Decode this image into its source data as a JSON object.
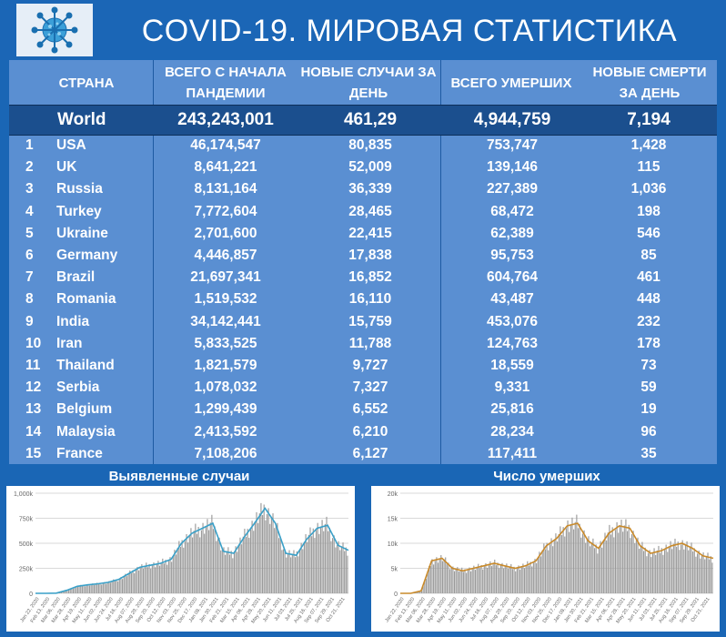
{
  "title": "COVID-19. МИРОВАЯ СТАТИСТИКА",
  "logo_icon": "coronavirus-icon",
  "columns": {
    "country": "СТРАНА",
    "total": "ВСЕГО С НАЧАЛА ПАНДЕМИИ",
    "new": "НОВЫЕ СЛУЧАИ ЗА ДЕНЬ",
    "deaths": "ВСЕГО УМЕРШИХ",
    "new_deaths": "НОВЫЕ СМЕРТИ ЗА ДЕНЬ"
  },
  "world": {
    "name": "World",
    "total": "243,243,001",
    "new": "461,29",
    "deaths": "4,944,759",
    "new_deaths": "7,194"
  },
  "rows": [
    {
      "rank": "1",
      "country": "USA",
      "total": "46,174,547",
      "new": "80,835",
      "deaths": "753,747",
      "new_deaths": "1,428"
    },
    {
      "rank": "2",
      "country": "UK",
      "total": "8,641,221",
      "new": "52,009",
      "deaths": "139,146",
      "new_deaths": "115"
    },
    {
      "rank": "3",
      "country": "Russia",
      "total": "8,131,164",
      "new": "36,339",
      "deaths": "227,389",
      "new_deaths": "1,036"
    },
    {
      "rank": "4",
      "country": "Turkey",
      "total": "7,772,604",
      "new": "28,465",
      "deaths": "68,472",
      "new_deaths": "198"
    },
    {
      "rank": "5",
      "country": "Ukraine",
      "total": "2,701,600",
      "new": "22,415",
      "deaths": "62,389",
      "new_deaths": "546"
    },
    {
      "rank": "6",
      "country": "Germany",
      "total": "4,446,857",
      "new": "17,838",
      "deaths": "95,753",
      "new_deaths": "85"
    },
    {
      "rank": "7",
      "country": "Brazil",
      "total": "21,697,341",
      "new": "16,852",
      "deaths": "604,764",
      "new_deaths": "461"
    },
    {
      "rank": "8",
      "country": "Romania",
      "total": "1,519,532",
      "new": "16,110",
      "deaths": "43,487",
      "new_deaths": "448"
    },
    {
      "rank": "9",
      "country": "India",
      "total": "34,142,441",
      "new": "15,759",
      "deaths": "453,076",
      "new_deaths": "232"
    },
    {
      "rank": "10",
      "country": "Iran",
      "total": "5,833,525",
      "new": "11,788",
      "deaths": "124,763",
      "new_deaths": "178"
    },
    {
      "rank": "11",
      "country": "Thailand",
      "total": "1,821,579",
      "new": "9,727",
      "deaths": "18,559",
      "new_deaths": "73"
    },
    {
      "rank": "12",
      "country": "Serbia",
      "total": "1,078,032",
      "new": "7,327",
      "deaths": "9,331",
      "new_deaths": "59"
    },
    {
      "rank": "13",
      "country": "Belgium",
      "total": "1,299,439",
      "new": "6,552",
      "deaths": "25,816",
      "new_deaths": "19"
    },
    {
      "rank": "14",
      "country": "Malaysia",
      "total": "2,413,592",
      "new": "6,210",
      "deaths": "28,234",
      "new_deaths": "96"
    },
    {
      "rank": "15",
      "country": "France",
      "total": "7,108,206",
      "new": "6,127",
      "deaths": "117,411",
      "new_deaths": "35"
    }
  ],
  "colors": {
    "header_bg": "#1b66b6",
    "table_bg": "#5a8fd2",
    "world_bg": "#1b4f8e",
    "bar": "#9a9a9a",
    "cases_line": "#3aa0c8",
    "deaths_line": "#c98a2a"
  },
  "chart_data": [
    {
      "type": "bar",
      "title": "Выявленные случаи",
      "ylim": [
        0,
        1000000
      ],
      "y_ticks": [
        "0",
        "250k",
        "500k",
        "750k",
        "1,000k"
      ],
      "x_tick_labels": [
        "Jan 22, 2020",
        "Feb 13, 2020",
        "Mar 06, 2020",
        "Mar 28, 2020",
        "Apr 19, 2020",
        "May 11, 2020",
        "Jun 02, 2020",
        "Jun 24, 2020",
        "Jul 16, 2020",
        "Aug 07, 2020",
        "Aug 29, 2020",
        "Sep 20, 2020",
        "Oct 12, 2020",
        "Nov 03, 2020",
        "Nov 25, 2020",
        "Dec 17, 2020",
        "Jan 08, 2021",
        "Jan 30, 2021",
        "Feb 21, 2021",
        "Mar 15, 2021",
        "Apr 06, 2021",
        "Apr 28, 2021",
        "May 20, 2021",
        "Jun 11, 2021",
        "Jul 03, 2021",
        "Jul 25, 2021",
        "Aug 16, 2021",
        "Sep 07, 2021",
        "Sep 29, 2021",
        "Oct 21, 2021"
      ],
      "series": [
        {
          "values": [
            0,
            0,
            2000,
            30000,
            70000,
            85000,
            95000,
            110000,
            140000,
            200000,
            260000,
            280000,
            300000,
            340000,
            500000,
            600000,
            650000,
            700000,
            420000,
            400000,
            560000,
            700000,
            850000,
            700000,
            400000,
            380000,
            540000,
            650000,
            680000,
            480000,
            430000
          ]
        }
      ],
      "line_series": [
        0,
        0,
        2000,
        30000,
        70000,
        85000,
        95000,
        110000,
        140000,
        200000,
        260000,
        280000,
        300000,
        340000,
        500000,
        600000,
        650000,
        700000,
        420000,
        400000,
        560000,
        700000,
        850000,
        700000,
        400000,
        380000,
        540000,
        650000,
        680000,
        480000,
        430000
      ]
    },
    {
      "type": "bar",
      "title": "Число умерших",
      "ylim": [
        0,
        20000
      ],
      "y_ticks": [
        "0",
        "5k",
        "10k",
        "15k",
        "20k"
      ],
      "x_tick_labels": [
        "Jan 22, 2020",
        "Feb 13, 2020",
        "Mar 06, 2020",
        "Mar 28, 2020",
        "Apr 19, 2020",
        "May 11, 2020",
        "Jun 02, 2020",
        "Jun 24, 2020",
        "Jul 16, 2020",
        "Aug 07, 2020",
        "Aug 29, 2020",
        "Sep 20, 2020",
        "Oct 12, 2020",
        "Nov 03, 2020",
        "Nov 25, 2020",
        "Dec 17, 2020",
        "Jan 08, 2021",
        "Jan 30, 2021",
        "Feb 21, 2021",
        "Mar 15, 2021",
        "Apr 06, 2021",
        "Apr 28, 2021",
        "May 20, 2021",
        "Jun 11, 2021",
        "Jul 03, 2021",
        "Jul 25, 2021",
        "Aug 16, 2021",
        "Sep 07, 2021",
        "Sep 29, 2021",
        "Oct 21, 2021"
      ],
      "series": [
        {
          "values": [
            0,
            0,
            500,
            6500,
            7000,
            5000,
            4500,
            5000,
            5500,
            6000,
            5500,
            5000,
            5500,
            6500,
            9500,
            11000,
            13500,
            14000,
            10500,
            9000,
            12000,
            13500,
            13000,
            9500,
            8000,
            8500,
            9500,
            10000,
            9000,
            7500,
            7000
          ]
        }
      ],
      "line_series": [
        0,
        0,
        500,
        6500,
        7000,
        5000,
        4500,
        5000,
        5500,
        6000,
        5500,
        5000,
        5500,
        6500,
        9500,
        11000,
        13500,
        14000,
        10500,
        9000,
        12000,
        13500,
        13000,
        9500,
        8000,
        8500,
        9500,
        10000,
        9000,
        7500,
        7000
      ]
    }
  ]
}
